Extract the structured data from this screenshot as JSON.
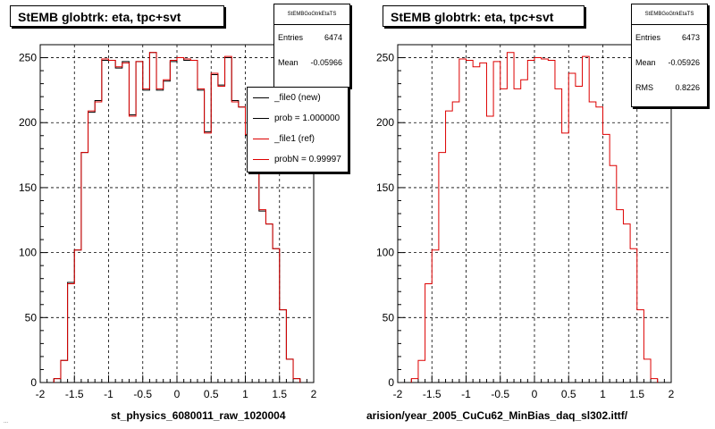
{
  "colors": {
    "new": "#000000",
    "ref": "#dd0000",
    "grid": "#000000"
  },
  "footer": "...",
  "chart_data": [
    {
      "type": "histogram",
      "title": "StEMB globtrk: eta, tpc+svt",
      "stats": {
        "name": "StEMBGoGtrkEtaTS",
        "entries_label": "Entries",
        "entries": "6474",
        "mean_label": "Mean",
        "mean": "-0.05966"
      },
      "legend": [
        "_file0 (new)",
        "prob = 1.000000",
        "_file1 (ref)",
        "probN = 0.99997"
      ],
      "xlabel": "st_physics_6080011_raw_1020004",
      "xlim": [
        -2,
        2
      ],
      "ylim": [
        0,
        260
      ],
      "xticks": [
        "-2",
        "-1.5",
        "-1",
        "-0.5",
        "0",
        "0.5",
        "1",
        "1.5",
        "2"
      ],
      "yticks": [
        "0",
        "50",
        "100",
        "150",
        "200",
        "250"
      ],
      "grid": true,
      "bin_width": 0.1,
      "bin_low_edges": [
        -1.8,
        -1.7,
        -1.6,
        -1.5,
        -1.4,
        -1.3,
        -1.2,
        -1.1,
        -1.0,
        -0.9,
        -0.8,
        -0.7,
        -0.6,
        -0.5,
        -0.4,
        -0.3,
        -0.2,
        -0.1,
        0.0,
        0.1,
        0.2,
        0.3,
        0.4,
        0.5,
        0.6,
        0.7,
        0.8,
        0.9,
        1.0,
        1.1,
        1.2,
        1.3,
        1.4,
        1.5,
        1.6,
        1.7
      ],
      "series": [
        {
          "name": "_file0 (new)",
          "values": [
            3,
            17,
            77,
            102,
            177,
            208,
            217,
            248,
            248,
            242,
            247,
            206,
            247,
            225,
            254,
            225,
            232,
            247,
            250,
            248,
            248,
            225,
            193,
            237,
            229,
            250,
            217,
            212,
            190,
            167,
            132,
            122,
            103,
            56,
            18,
            3
          ]
        },
        {
          "name": "_file1 (ref)",
          "values": [
            3,
            17,
            76,
            102,
            177,
            209,
            216,
            249,
            248,
            243,
            246,
            205,
            247,
            226,
            254,
            226,
            233,
            248,
            250,
            249,
            248,
            226,
            192,
            238,
            228,
            251,
            216,
            212,
            191,
            167,
            133,
            122,
            103,
            56,
            18,
            3
          ]
        }
      ]
    },
    {
      "type": "histogram",
      "title": "StEMB globtrk: eta, tpc+svt",
      "stats": {
        "name": "StEMBGoGtrkEtaTS",
        "entries_label": "Entries",
        "entries": "6473",
        "mean_label": "Mean",
        "mean": "-0.05926",
        "rms_label": "RMS",
        "rms": "0.8226"
      },
      "xlabel": "arision/year_2005_CuCu62_MinBias_daq_sl302.ittf/",
      "xlim": [
        -2,
        2
      ],
      "ylim": [
        0,
        260
      ],
      "xticks": [
        "-2",
        "-1.5",
        "-1",
        "-0.5",
        "0",
        "0.5",
        "1",
        "1.5",
        "2"
      ],
      "yticks": [
        "0",
        "50",
        "100",
        "150",
        "200",
        "250"
      ],
      "grid": true,
      "bin_width": 0.1,
      "bin_low_edges": [
        -1.8,
        -1.7,
        -1.6,
        -1.5,
        -1.4,
        -1.3,
        -1.2,
        -1.1,
        -1.0,
        -0.9,
        -0.8,
        -0.7,
        -0.6,
        -0.5,
        -0.4,
        -0.3,
        -0.2,
        -0.1,
        0.0,
        0.1,
        0.2,
        0.3,
        0.4,
        0.5,
        0.6,
        0.7,
        0.8,
        0.9,
        1.0,
        1.1,
        1.2,
        1.3,
        1.4,
        1.5,
        1.6,
        1.7
      ],
      "series": [
        {
          "name": "_file1 (ref)",
          "values": [
            3,
            17,
            76,
            102,
            177,
            209,
            216,
            249,
            248,
            243,
            246,
            205,
            247,
            226,
            254,
            226,
            233,
            248,
            250,
            249,
            248,
            226,
            192,
            238,
            228,
            251,
            216,
            212,
            191,
            167,
            133,
            122,
            103,
            56,
            18,
            3
          ]
        }
      ]
    }
  ]
}
